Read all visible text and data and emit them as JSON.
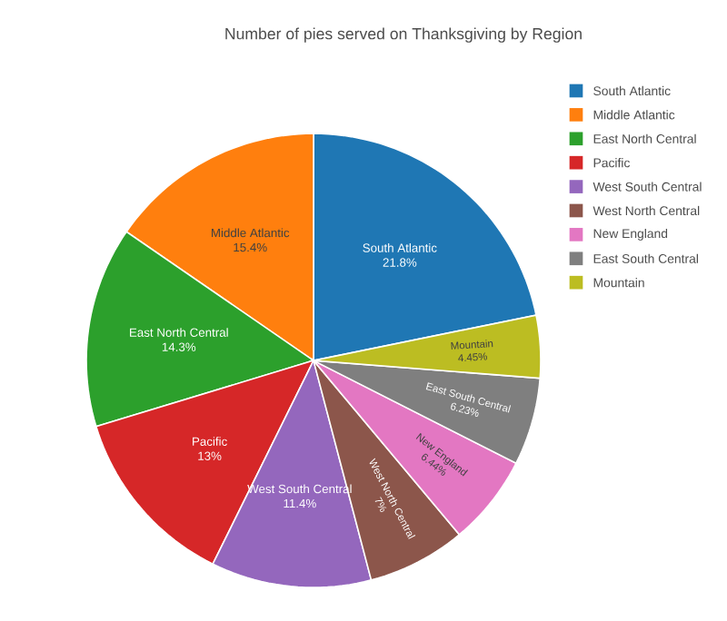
{
  "chart_data": {
    "type": "pie",
    "title": "Number of pies served on Thanksgiving by Region",
    "categories": [
      "South Atlantic",
      "Middle Atlantic",
      "East North Central",
      "Pacific",
      "West South Central",
      "West North Central",
      "New England",
      "East South Central",
      "Mountain"
    ],
    "values": [
      21.8,
      15.4,
      14.3,
      13,
      11.4,
      7,
      6.44,
      6.23,
      4.45
    ],
    "value_labels": [
      "21.8%",
      "15.4%",
      "14.3%",
      "13%",
      "11.4%",
      "7%",
      "6.44%",
      "6.23%",
      "4.45%"
    ],
    "colors": [
      "#1f77b4",
      "#ff7f0e",
      "#2ca02c",
      "#d62728",
      "#9467bd",
      "#8c564b",
      "#e377c2",
      "#7f7f7f",
      "#bcbd22"
    ],
    "legend": "top right"
  }
}
